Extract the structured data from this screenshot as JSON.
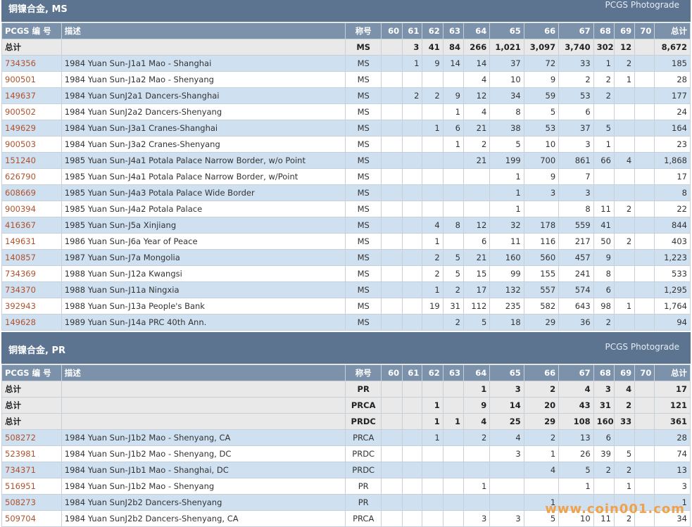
{
  "sections": [
    {
      "title": "铜镍合金, MS",
      "photograde": "PCGS Photograde",
      "headers": [
        "PCGS 编 号",
        "描述",
        "称号",
        "60",
        "61",
        "62",
        "63",
        "64",
        "65",
        "66",
        "67",
        "68",
        "69",
        "70",
        "总计"
      ],
      "totals": [
        [
          "总计",
          "",
          "MS",
          "",
          "3",
          "41",
          "84",
          "266",
          "1,021",
          "3,097",
          "3,740",
          "302",
          "12",
          "",
          "8,672"
        ]
      ],
      "rows": [
        [
          "734356",
          "1984 Yuan Sun-J1a1 Mao - Shanghai",
          "MS",
          "",
          "1",
          "9",
          "14",
          "14",
          "37",
          "72",
          "33",
          "1",
          "2",
          "",
          "185"
        ],
        [
          "900501",
          "1984 Yuan Sun-J1a2 Mao - Shenyang",
          "MS",
          "",
          "",
          "",
          "",
          "4",
          "10",
          "9",
          "2",
          "2",
          "1",
          "",
          "28"
        ],
        [
          "149637",
          "1984 Yuan SunJ2a1 Dancers-Shanghai",
          "MS",
          "",
          "2",
          "2",
          "9",
          "12",
          "34",
          "59",
          "53",
          "2",
          "",
          "",
          "177"
        ],
        [
          "900502",
          "1984 Yuan SunJ2a2 Dancers-Shenyang",
          "MS",
          "",
          "",
          "",
          "1",
          "4",
          "8",
          "5",
          "6",
          "",
          "",
          "",
          "24"
        ],
        [
          "149629",
          "1984 Yuan Sun-J3a1 Cranes-Shanghai",
          "MS",
          "",
          "",
          "1",
          "6",
          "21",
          "38",
          "53",
          "37",
          "5",
          "",
          "",
          "164"
        ],
        [
          "900503",
          "1984 Yuan Sun-J3a2 Cranes-Shenyang",
          "MS",
          "",
          "",
          "",
          "1",
          "2",
          "5",
          "10",
          "3",
          "1",
          "",
          "",
          "23"
        ],
        [
          "151240",
          "1985 Yuan Sun-J4a1 Potala Palace Narrow Border, w/o Point",
          "MS",
          "",
          "",
          "",
          "",
          "21",
          "199",
          "700",
          "861",
          "66",
          "4",
          "",
          "1,868"
        ],
        [
          "626790",
          "1985 Yuan Sun-J4a1 Potala Palace Narrow Border, w/Point",
          "MS",
          "",
          "",
          "",
          "",
          "",
          "1",
          "9",
          "7",
          "",
          "",
          "",
          "17"
        ],
        [
          "608669",
          "1985 Yuan Sun-J4a3 Potala Palace Wide Border",
          "MS",
          "",
          "",
          "",
          "",
          "",
          "1",
          "3",
          "3",
          "",
          "",
          "",
          "8"
        ],
        [
          "900394",
          "1985 Yuan Sun-J4a2 Potala Palace",
          "MS",
          "",
          "",
          "",
          "",
          "",
          "1",
          "",
          "8",
          "11",
          "2",
          "",
          "22"
        ],
        [
          "416367",
          "1985 Yuan Sun-J5a Xinjiang",
          "MS",
          "",
          "",
          "4",
          "8",
          "12",
          "32",
          "178",
          "559",
          "41",
          "",
          "",
          "844"
        ],
        [
          "149631",
          "1986 Yuan Sun-J6a Year of Peace",
          "MS",
          "",
          "",
          "1",
          "",
          "6",
          "11",
          "116",
          "217",
          "50",
          "2",
          "",
          "403"
        ],
        [
          "140857",
          "1987 Yuan Sun-J7a Mongolia",
          "MS",
          "",
          "",
          "2",
          "5",
          "21",
          "160",
          "560",
          "457",
          "9",
          "",
          "",
          "1,223"
        ],
        [
          "734369",
          "1988 Yuan Sun-J12a Kwangsi",
          "MS",
          "",
          "",
          "2",
          "5",
          "15",
          "99",
          "155",
          "241",
          "8",
          "",
          "",
          "533"
        ],
        [
          "734370",
          "1988 Yuan Sun-J11a Ningxia",
          "MS",
          "",
          "",
          "1",
          "2",
          "17",
          "132",
          "557",
          "574",
          "6",
          "",
          "",
          "1,295"
        ],
        [
          "392943",
          "1988 Yuan Sun-J13a People's Bank",
          "MS",
          "",
          "",
          "19",
          "31",
          "112",
          "235",
          "582",
          "643",
          "98",
          "1",
          "",
          "1,764"
        ],
        [
          "149628",
          "1989 Yuan Sun-J14a PRC 40th Ann.",
          "MS",
          "",
          "",
          "",
          "2",
          "5",
          "18",
          "29",
          "36",
          "2",
          "",
          "",
          "94"
        ]
      ]
    },
    {
      "title": "铜镍合金, PR",
      "photograde": "PCGS Photograde",
      "headers": [
        "PCGS 编 号",
        "描述",
        "称号",
        "60",
        "61",
        "62",
        "63",
        "64",
        "65",
        "66",
        "67",
        "68",
        "69",
        "70",
        "总计"
      ],
      "totals": [
        [
          "总计",
          "",
          "PR",
          "",
          "",
          "",
          "",
          "1",
          "3",
          "2",
          "4",
          "3",
          "4",
          "",
          "17"
        ],
        [
          "总计",
          "",
          "PRCA",
          "",
          "",
          "1",
          "",
          "9",
          "14",
          "20",
          "43",
          "31",
          "2",
          "",
          "121"
        ],
        [
          "总计",
          "",
          "PRDC",
          "",
          "",
          "1",
          "1",
          "4",
          "25",
          "29",
          "108",
          "160",
          "33",
          "",
          "361"
        ]
      ],
      "rows": [
        [
          "508272",
          "1984 Yuan Sun-J1b2 Mao - Shenyang, CA",
          "PRCA",
          "",
          "",
          "1",
          "",
          "2",
          "4",
          "2",
          "13",
          "6",
          "",
          "",
          "28"
        ],
        [
          "523981",
          "1984 Yuan Sun-J1b2 Mao - Shenyang, DC",
          "PRDC",
          "",
          "",
          "",
          "",
          "",
          "3",
          "1",
          "26",
          "39",
          "5",
          "",
          "74"
        ],
        [
          "734371",
          "1984 Yuan Sun-J1b1 Mao - Shanghai, DC",
          "PRDC",
          "",
          "",
          "",
          "",
          "",
          "",
          "4",
          "5",
          "2",
          "2",
          "",
          "13"
        ],
        [
          "516951",
          "1984 Yuan Sun-J1b2 Mao - Shenyang",
          "PR",
          "",
          "",
          "",
          "",
          "1",
          "",
          "",
          "1",
          "",
          "1",
          "",
          "3"
        ],
        [
          "508273",
          "1984 Yuan SunJ2b2 Dancers-Shenyang",
          "PR",
          "",
          "",
          "",
          "",
          "",
          "",
          "1",
          "",
          "",
          "",
          "",
          "1"
        ],
        [
          "509704",
          "1984 Yuan SunJ2b2 Dancers-Shenyang, CA",
          "PRCA",
          "",
          "",
          "",
          "",
          "3",
          "3",
          "5",
          "10",
          "11",
          "2",
          "",
          "34"
        ]
      ]
    }
  ],
  "watermark": "www.coin001.com",
  "colors": {
    "header_bar": "#5c7490",
    "column_header": "#7c92ab",
    "odd_row": "#cfe0f1",
    "total_row": "#e9e9e9",
    "code_link": "#b0522d"
  }
}
